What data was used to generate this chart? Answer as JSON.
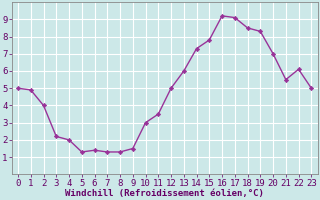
{
  "x": [
    0,
    1,
    2,
    3,
    4,
    5,
    6,
    7,
    8,
    9,
    10,
    11,
    12,
    13,
    14,
    15,
    16,
    17,
    18,
    19,
    20,
    21,
    22,
    23
  ],
  "y": [
    5.0,
    4.9,
    4.0,
    2.2,
    2.0,
    1.3,
    1.4,
    1.3,
    1.3,
    1.5,
    3.0,
    3.5,
    5.0,
    6.0,
    7.3,
    7.8,
    9.2,
    9.1,
    8.5,
    8.3,
    7.0,
    5.5,
    6.1,
    5.0
  ],
  "line_color": "#993399",
  "marker": "D",
  "markersize": 2.2,
  "linewidth": 1.0,
  "bg_color": "#cce8e8",
  "grid_color": "#ffffff",
  "xlabel": "Windchill (Refroidissement éolien,°C)",
  "xlim_min": -0.5,
  "xlim_max": 23.5,
  "ylim_min": 0,
  "ylim_max": 10,
  "xticks": [
    0,
    1,
    2,
    3,
    4,
    5,
    6,
    7,
    8,
    9,
    10,
    11,
    12,
    13,
    14,
    15,
    16,
    17,
    18,
    19,
    20,
    21,
    22,
    23
  ],
  "yticks": [
    1,
    2,
    3,
    4,
    5,
    6,
    7,
    8,
    9
  ],
  "xlabel_fontsize": 6.5,
  "tick_fontsize": 6.5,
  "label_color": "#660066",
  "spine_color": "#888888"
}
